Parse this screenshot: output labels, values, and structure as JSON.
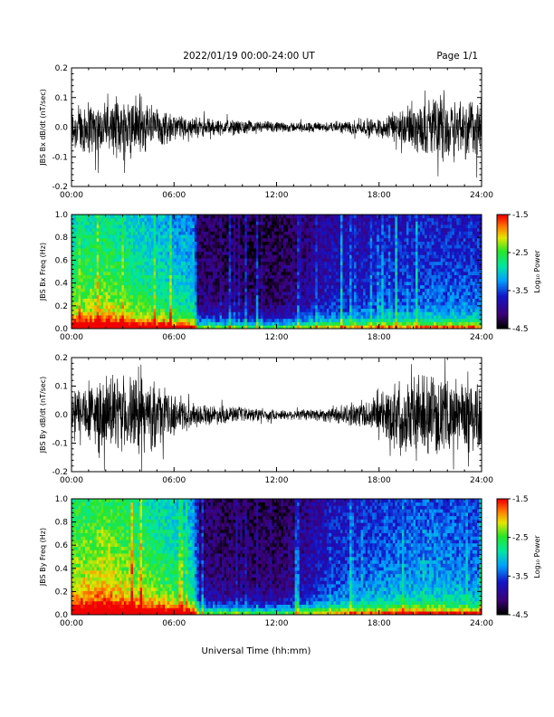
{
  "header": {
    "title": "2022/01/19  00:00-24:00 UT",
    "page": "Page 1/1"
  },
  "footer": {
    "xlabel": "Universal Time (hh:mm)"
  },
  "chart_data": [
    {
      "type": "line",
      "ylabel": "JBS Bx dB/dt (nT/sec)",
      "xlim": [
        0,
        24
      ],
      "ylim": [
        -0.2,
        0.2
      ],
      "x_ticks": [
        "00:00",
        "06:00",
        "12:00",
        "18:00",
        "24:00"
      ],
      "y_ticks": [
        "0.2",
        "0.1",
        "0.0",
        "-0.1",
        "-0.2"
      ],
      "envelope_x": [
        0,
        1,
        2,
        3,
        4,
        5,
        6,
        7,
        8,
        9,
        10,
        11,
        12,
        13,
        14,
        15,
        16,
        17,
        18,
        19,
        20,
        21,
        22,
        23,
        24
      ],
      "envelope_amp": [
        0.1,
        0.11,
        0.09,
        0.12,
        0.13,
        0.08,
        0.05,
        0.04,
        0.035,
        0.03,
        0.025,
        0.025,
        0.02,
        0.02,
        0.02,
        0.02,
        0.025,
        0.03,
        0.04,
        0.06,
        0.09,
        0.11,
        0.13,
        0.12,
        0.12
      ],
      "line_color": "#000000"
    },
    {
      "type": "heatmap",
      "ylabel": "JBS Bx Freq (Hz)",
      "colorbar_label": "Log₁₀ Power",
      "xlim": [
        0,
        24
      ],
      "ylim": [
        0,
        1
      ],
      "x_ticks": [
        "00:00",
        "06:00",
        "12:00",
        "18:00",
        "24:00"
      ],
      "y_ticks": [
        "1.0",
        "0.8",
        "0.6",
        "0.4",
        "0.2",
        "0.0"
      ],
      "colorbar_range": [
        -4.5,
        -1.5
      ],
      "colorbar_ticks": [
        "-1.5",
        "-2.5",
        "-3.5",
        "-4.5"
      ],
      "activity_x": [
        0,
        2,
        4,
        6,
        7.2,
        7.4,
        10,
        12,
        13,
        15,
        18,
        21,
        24
      ],
      "activity": [
        0.7,
        0.75,
        0.65,
        0.55,
        0.5,
        0.12,
        0.08,
        0.08,
        0.12,
        0.25,
        0.3,
        0.35,
        0.35
      ]
    },
    {
      "type": "line",
      "ylabel": "JBS By dB/dt (nT/sec)",
      "xlim": [
        0,
        24
      ],
      "ylim": [
        -0.2,
        0.2
      ],
      "x_ticks": [
        "00:00",
        "06:00",
        "12:00",
        "18:00",
        "24:00"
      ],
      "y_ticks": [
        "0.2",
        "0.1",
        "0.0",
        "-0.1",
        "-0.2"
      ],
      "envelope_x": [
        0,
        1,
        2,
        3,
        4,
        5,
        6,
        7,
        8,
        9,
        10,
        11,
        12,
        13,
        14,
        15,
        16,
        17,
        18,
        19,
        20,
        21,
        22,
        23,
        24
      ],
      "envelope_amp": [
        0.12,
        0.13,
        0.14,
        0.15,
        0.16,
        0.12,
        0.08,
        0.05,
        0.04,
        0.035,
        0.03,
        0.025,
        0.02,
        0.02,
        0.025,
        0.03,
        0.04,
        0.05,
        0.08,
        0.14,
        0.16,
        0.15,
        0.14,
        0.15,
        0.18
      ],
      "line_color": "#000000"
    },
    {
      "type": "heatmap",
      "ylabel": "JBS By Freq (Hz)",
      "colorbar_label": "Log₁₀ Power",
      "xlim": [
        0,
        24
      ],
      "ylim": [
        0,
        1
      ],
      "x_ticks": [
        "00:00",
        "06:00",
        "12:00",
        "18:00",
        "24:00"
      ],
      "y_ticks": [
        "1.0",
        "0.8",
        "0.6",
        "0.4",
        "0.2",
        "0.0"
      ],
      "colorbar_range": [
        -4.5,
        -1.5
      ],
      "colorbar_ticks": [
        "-1.5",
        "-2.5",
        "-3.5",
        "-4.5"
      ],
      "activity_x": [
        0,
        2,
        4,
        6,
        7.2,
        7.4,
        10,
        12,
        13,
        15,
        18,
        21,
        24
      ],
      "activity": [
        0.8,
        0.85,
        0.75,
        0.65,
        0.55,
        0.15,
        0.1,
        0.1,
        0.15,
        0.3,
        0.4,
        0.45,
        0.4
      ]
    }
  ]
}
